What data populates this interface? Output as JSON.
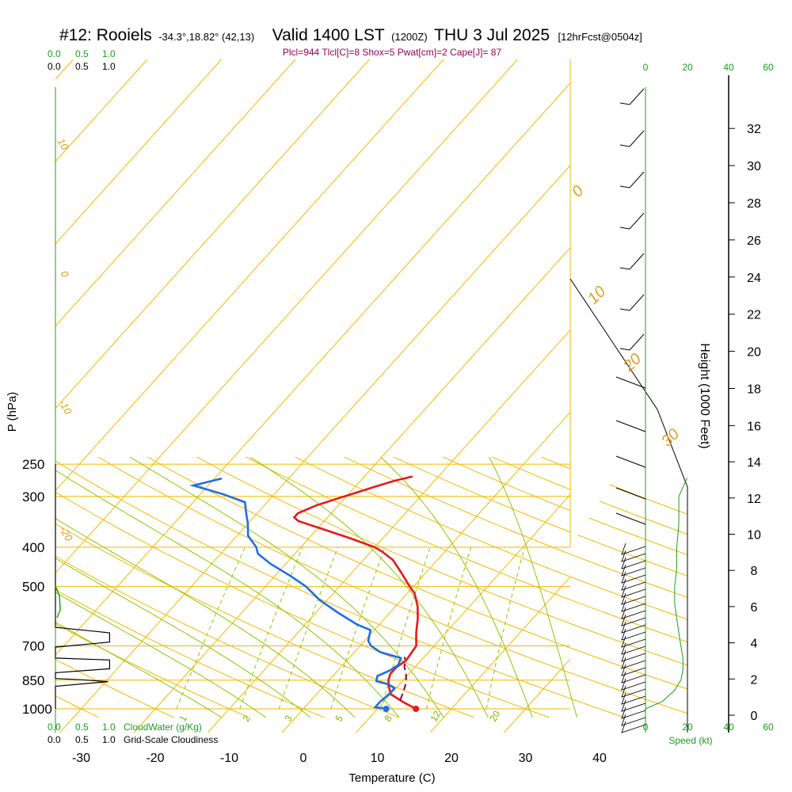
{
  "header": {
    "station": "#12: Rooiels",
    "coords": "-34.3°,18.82° (42,13)",
    "valid": "Valid 1400 LST",
    "zulu": "(1200Z)",
    "date": "THU 3 Jul 2025",
    "forecast": "[12hrFcst@0504z]",
    "stats": "Plcl=944 Tlcl[C]=8 Shox=5 Pwat[cm]=2 Cape[J]= 87"
  },
  "colors": {
    "temperature": "#e61919",
    "dewpoint": "#1e6fe6",
    "parcel": "#880044",
    "isobar": "#f5b800",
    "isotherm": "#f5b800",
    "dry_adiabat": "#f5b800",
    "moist_adiabat": "#8ec600",
    "mixing_ratio": "#8ec600",
    "wind_speed": "#1aa01a",
    "cloud": "#000000"
  },
  "top_scale": {
    "cloud_water": [
      "0.0",
      "0.5",
      "1.0"
    ],
    "cloudiness": [
      "0.0",
      "0.5",
      "1.0"
    ]
  },
  "bottom_scale": {
    "cloud_water": [
      "0.0",
      "0.5",
      "1.0"
    ],
    "cloud_water_label": "CloudWater (g/Kg)",
    "cloudiness": [
      "0.0",
      "0.5",
      "1.0"
    ],
    "cloudiness_label": "Grid-Scale Cloudiness"
  },
  "speed_axis": {
    "ticks": [
      "0",
      "20",
      "40",
      "60"
    ],
    "label": "Speed (kt)"
  },
  "chart_data": {
    "type": "line",
    "title": "#12: Rooiels Valid 1400 LST (1200Z) THU 3 Jul 2025",
    "xlabel": "Temperature (C)",
    "ylabel": "P (hPa)",
    "y2label": "Height (1000 Feet)",
    "xlim": [
      -35,
      45
    ],
    "ylim": [
      1000,
      250
    ],
    "y_scale": "log",
    "pressure_ticks": [
      "250",
      "300",
      "400",
      "500",
      "700",
      "850",
      "1000"
    ],
    "temp_ticks": [
      "-30",
      "-20",
      "-10",
      "0",
      "10",
      "20",
      "30",
      "40"
    ],
    "height_ticks": [
      "0",
      "2",
      "4",
      "6",
      "8",
      "10",
      "12",
      "14",
      "16",
      "18",
      "20",
      "22",
      "24",
      "26",
      "28",
      "30",
      "32"
    ],
    "mixing_ratio_labels": [
      "1",
      "2",
      "3",
      "5",
      "8",
      "12",
      "20"
    ],
    "dry_adiabat_labels": [
      "10",
      "0",
      "-10",
      "-20",
      "0",
      "10",
      "20",
      "30"
    ],
    "series": [
      {
        "name": "Temperature",
        "points": [
          [
            15.2,
            1000
          ],
          [
            12.5,
            960
          ],
          [
            10.0,
            920
          ],
          [
            8.8,
            880
          ],
          [
            8.0,
            850
          ],
          [
            7.5,
            820
          ],
          [
            7.5,
            790
          ],
          [
            8.0,
            760
          ],
          [
            7.8,
            730
          ],
          [
            7.6,
            700
          ],
          [
            6.0,
            650
          ],
          [
            4.5,
            600
          ],
          [
            3.0,
            560
          ],
          [
            1.0,
            520
          ],
          [
            -0.5,
            500
          ],
          [
            -3.5,
            460
          ],
          [
            -6.0,
            430
          ],
          [
            -8.5,
            410
          ],
          [
            -10.0,
            400
          ],
          [
            -14.5,
            380
          ],
          [
            -19.5,
            360
          ],
          [
            -23.5,
            345
          ],
          [
            -24.5,
            338
          ],
          [
            -24.5,
            330
          ],
          [
            -23.0,
            316
          ],
          [
            -21.0,
            304
          ],
          [
            -19.0,
            293
          ],
          [
            -17.5,
            285
          ],
          [
            -15.5,
            275
          ],
          [
            -13.5,
            268
          ]
        ]
      },
      {
        "name": "Dewpoint",
        "points": [
          [
            11.2,
            1000
          ],
          [
            9.5,
            990
          ],
          [
            9.5,
            960
          ],
          [
            9.8,
            920
          ],
          [
            9.8,
            890
          ],
          [
            8.5,
            870
          ],
          [
            6.5,
            855
          ],
          [
            6.0,
            830
          ],
          [
            7.0,
            805
          ],
          [
            7.5,
            780
          ],
          [
            7.0,
            750
          ],
          [
            3.5,
            725
          ],
          [
            1.5,
            700
          ],
          [
            0.5,
            680
          ],
          [
            -0.5,
            640
          ],
          [
            -3.0,
            620
          ],
          [
            -7.0,
            580
          ],
          [
            -11.0,
            540
          ],
          [
            -14.5,
            500
          ],
          [
            -18.0,
            470
          ],
          [
            -22.0,
            440
          ],
          [
            -25.0,
            415
          ],
          [
            -26.0,
            400
          ],
          [
            -28.5,
            375
          ],
          [
            -30.0,
            350
          ],
          [
            -31.5,
            330
          ],
          [
            -33.0,
            310
          ],
          [
            -37.0,
            296
          ],
          [
            -42.0,
            282
          ],
          [
            -39.0,
            271
          ]
        ]
      },
      {
        "name": "Parcel",
        "points": [
          [
            12.0,
            950
          ],
          [
            11.6,
            920
          ],
          [
            11.0,
            880
          ],
          [
            10.4,
            850
          ],
          [
            9.6,
            820
          ],
          [
            8.6,
            790
          ],
          [
            7.8,
            760
          ],
          [
            7.4,
            745
          ]
        ]
      }
    ],
    "wind_speed_profile": [
      [
        0,
        1000
      ],
      [
        8,
        960
      ],
      [
        14,
        900
      ],
      [
        17,
        850
      ],
      [
        18,
        800
      ],
      [
        18,
        750
      ],
      [
        17,
        700
      ],
      [
        16,
        650
      ],
      [
        15,
        600
      ],
      [
        14,
        550
      ],
      [
        14,
        500
      ],
      [
        15,
        450
      ],
      [
        15,
        400
      ],
      [
        16,
        350
      ],
      [
        16,
        300
      ],
      [
        20,
        270
      ]
    ],
    "cloud_fraction_profile": [
      [
        0.0,
        1000
      ],
      [
        0.0,
        900
      ],
      [
        0.0,
        880
      ],
      [
        0.55,
        862
      ],
      [
        0.7,
        857
      ],
      [
        0.35,
        848
      ],
      [
        0.0,
        842
      ],
      [
        0.0,
        815
      ],
      [
        0.72,
        797
      ],
      [
        0.72,
        758
      ],
      [
        0.0,
        750
      ],
      [
        0.0,
        705
      ],
      [
        0.72,
        685
      ],
      [
        0.72,
        650
      ],
      [
        0.0,
        630
      ],
      [
        0.0,
        250
      ]
    ]
  }
}
